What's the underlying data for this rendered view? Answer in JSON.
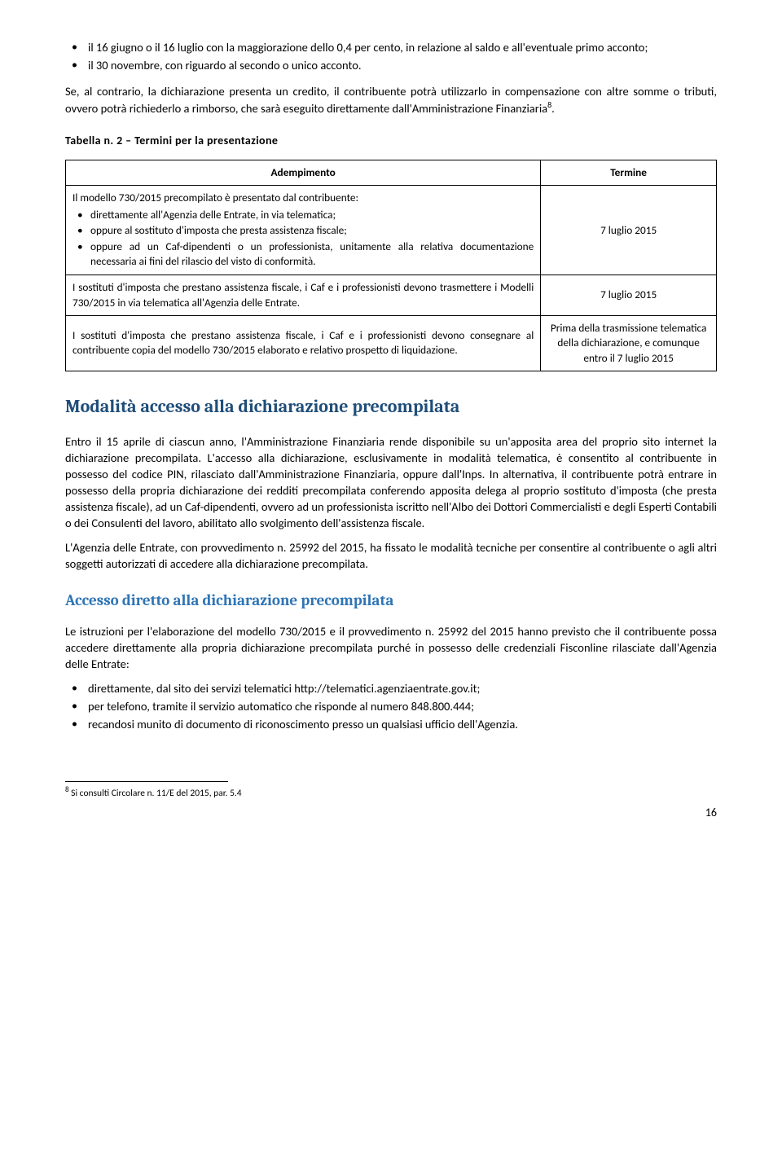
{
  "intro_bullets": [
    "il 16 giugno o il 16 luglio con la maggiorazione dello 0,4 per cento, in relazione al saldo e all'eventuale primo acconto;",
    "il 30 novembre, con riguardo al secondo o unico acconto."
  ],
  "intro_para_pre": "Se, al contrario, la dichiarazione presenta un credito, il contribuente potrà utilizzarlo in compensazione con altre somme o tributi, ovvero potrà richiederlo a rimborso, che sarà eseguito direttamente dall'Amministrazione Finanziaria",
  "intro_para_post": ".",
  "intro_footnote_marker": "8",
  "table_caption": "Tabella n. 2 – Termini per la presentazione",
  "table": {
    "headers": [
      "Adempimento",
      "Termine"
    ],
    "col_widths": [
      "73%",
      "27%"
    ],
    "rows": [
      {
        "left_lead": "Il modello 730/2015 precompilato è presentato dal contribuente:",
        "left_items": [
          "direttamente all'Agenzia delle Entrate, in via telematica;",
          "oppure al sostituto d'imposta che presta assistenza fiscale;",
          "oppure ad un Caf-dipendenti o un professionista, unitamente alla relativa documentazione necessaria ai fini del rilascio del visto di conformità."
        ],
        "right": "7 luglio 2015"
      },
      {
        "left": "I sostituti d'imposta che prestano assistenza fiscale, i Caf e i professionisti devono trasmettere i Modelli 730/2015 in via telematica all'Agenzia delle Entrate.",
        "right": "7 luglio 2015"
      },
      {
        "left": "I sostituti d'imposta che prestano assistenza fiscale, i Caf e i professionisti devono consegnare al contribuente copia del modello 730/2015 elaborato e relativo prospetto di liquidazione.",
        "right": "Prima della trasmissione telematica della dichiarazione, e comunque entro il 7 luglio 2015"
      }
    ]
  },
  "h2": "Modalità accesso alla dichiarazione precompilata",
  "para1": "Entro il 15 aprile di ciascun anno, l'Amministrazione Finanziaria rende disponibile su un'apposita area del proprio sito internet  la dichiarazione precompilata. L'accesso alla dichiarazione, esclusivamente in modalità telematica, è consentito al contribuente in possesso del codice PIN, rilasciato dall'Amministrazione Finanziaria, oppure dall'Inps. In alternativa, il contribuente potrà entrare in possesso della propria dichiarazione dei redditi precompilata conferendo apposita delega al proprio sostituto d'imposta (che presta assistenza fiscale), ad un Caf-dipendenti, ovvero ad un professionista iscritto nell'Albo dei Dottori Commercialisti e degli Esperti Contabili o dei Consulenti del lavoro, abilitato allo svolgimento dell'assistenza fiscale.",
  "para2": "L'Agenzia delle Entrate, con provvedimento n. 25992 del 2015, ha fissato le modalità tecniche per consentire al contribuente o agli altri soggetti autorizzati di accedere alla dichiarazione precompilata.",
  "h3": "Accesso diretto alla dichiarazione precompilata",
  "para3": "Le istruzioni per l'elaborazione del modello 730/2015 e il provvedimento n. 25992 del 2015 hanno previsto che il contribuente possa accedere direttamente alla propria dichiarazione precompilata purché in possesso delle credenziali Fisconline rilasciate dall'Agenzia delle Entrate:",
  "access_bullets": [
    "direttamente, dal sito dei servizi telematici http://telematici.agenziaentrate.gov.it;",
    "per telefono, tramite il servizio automatico che risponde al numero 848.800.444;",
    "recandosi munito di documento di riconoscimento presso un qualsiasi ufficio dell'Agenzia."
  ],
  "footnote_marker": "8",
  "footnote_text": " Si consulti Circolare n. 11/E del 2015, par. 5.4",
  "page_number": "16"
}
